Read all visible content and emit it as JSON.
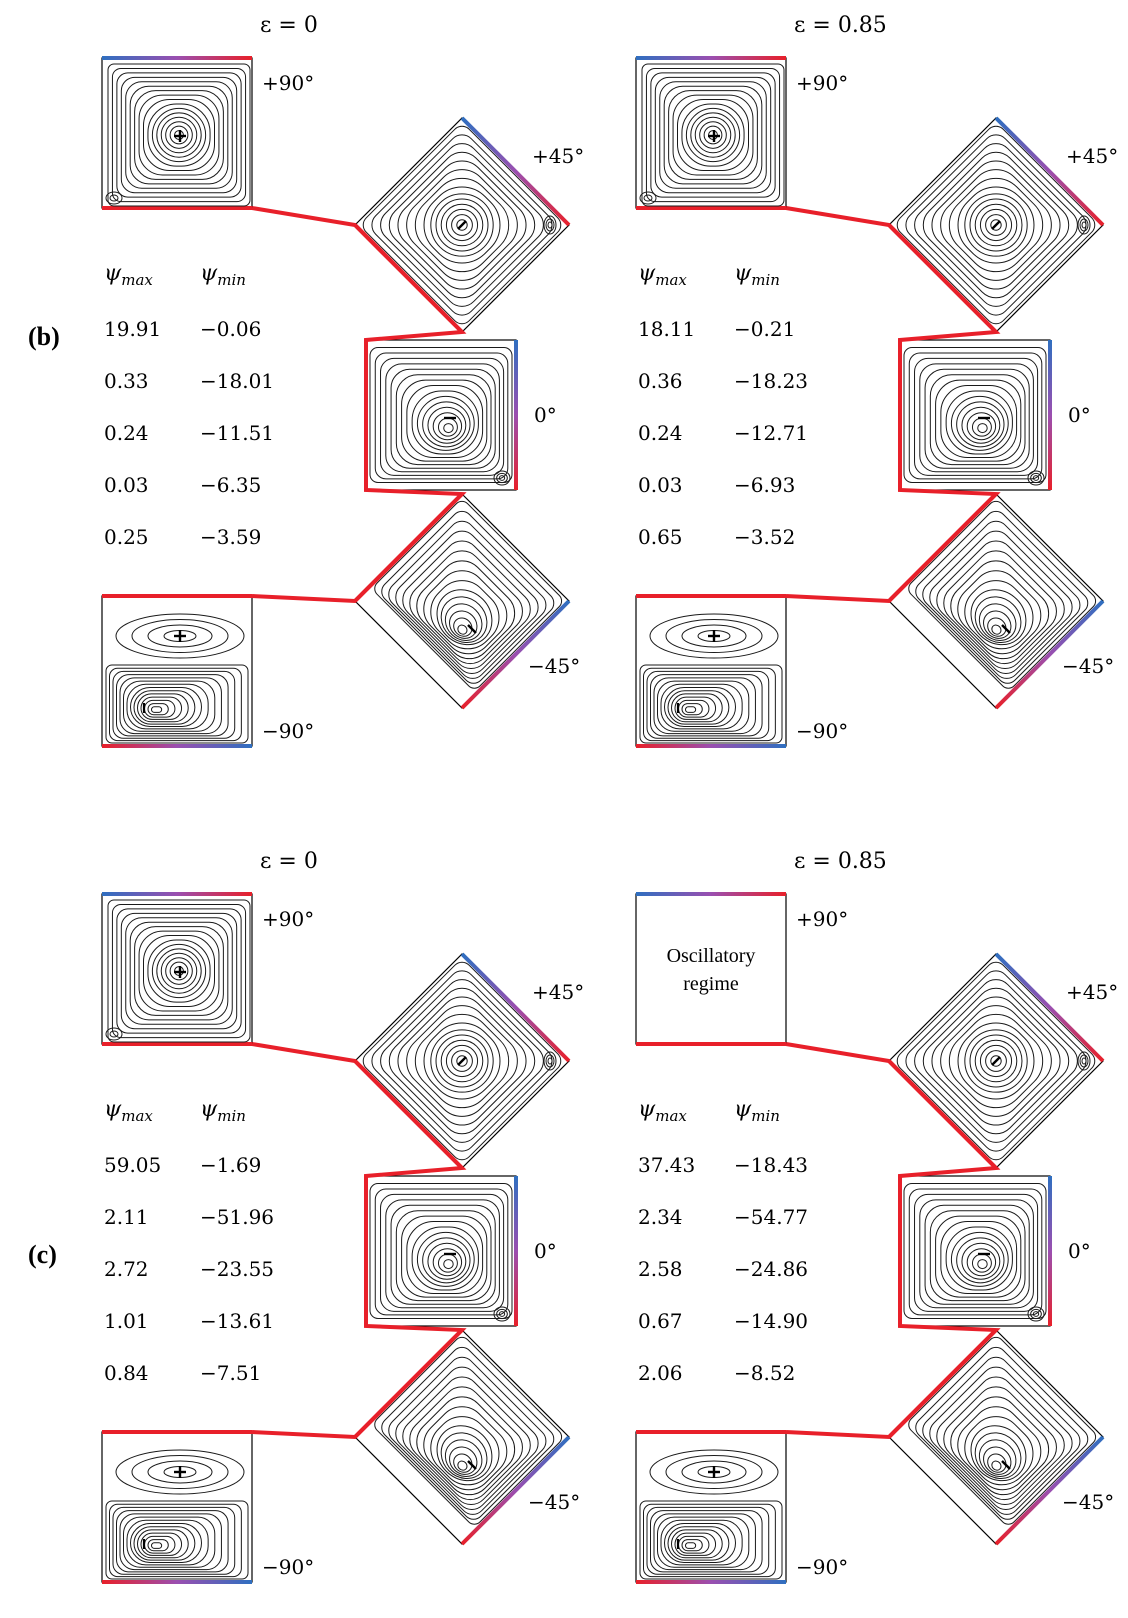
{
  "colors": {
    "wall_hot": "#e8202a",
    "wall_cold": "#2f6fc0",
    "gradient_mid": "#9a4fb0",
    "streamline": "#1a1a1a",
    "line": "#000000"
  },
  "angles": {
    "p90": "+90°",
    "p45": "+45°",
    "zero": "0°",
    "m45": "−45°",
    "m90": "−90°"
  },
  "headers": {
    "psi_max": "ψ",
    "psi_max_sub": "max",
    "psi_min": "ψ",
    "psi_min_sub": "min"
  },
  "panels": [
    {
      "label": "(b)",
      "epsilon": "ε = 0",
      "psi_max": [
        "19.91",
        "0.33",
        "0.24",
        "0.03",
        "0.25"
      ],
      "psi_min": [
        "−0.06",
        "−18.01",
        "−11.51",
        "−6.35",
        "−3.59"
      ]
    },
    {
      "epsilon": "ε = 0.85",
      "psi_max": [
        "18.11",
        "0.36",
        "0.24",
        "0.03",
        "0.65"
      ],
      "psi_min": [
        "−0.21",
        "−18.23",
        "−12.71",
        "−6.93",
        "−3.52"
      ]
    },
    {
      "label": "(c)",
      "epsilon": "ε = 0",
      "psi_max": [
        "59.05",
        "2.11",
        "2.72",
        "1.01",
        "0.84"
      ],
      "psi_min": [
        "−1.69",
        "−51.96",
        "−23.55",
        "−13.61",
        "−7.51"
      ]
    },
    {
      "epsilon": "ε = 0.85",
      "oscillatory_text": [
        "Oscillatory",
        "regime"
      ],
      "psi_max": [
        "37.43",
        "2.34",
        "2.58",
        "0.67",
        "2.06"
      ],
      "psi_min": [
        "−18.43",
        "−54.77",
        "−24.86",
        "−14.90",
        "−8.52"
      ]
    }
  ]
}
